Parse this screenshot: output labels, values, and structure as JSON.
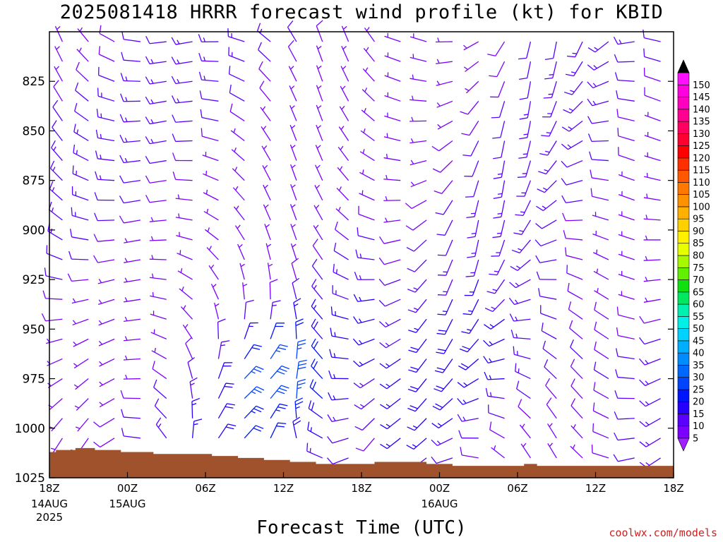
{
  "title": "2025081418 HRRR forecast wind profile (kt) for KBID",
  "credit": "coolwx.com/models",
  "chart_data": {
    "type": "wind_barb_time_height",
    "title": "2025081418 HRRR forecast wind profile (kt) for KBID",
    "xlabel": "Forecast Time (UTC)",
    "ylabel": "",
    "y_range_mb": [
      1025,
      800
    ],
    "x_range_hours": [
      0,
      48
    ],
    "y_ticks": [
      825,
      850,
      875,
      900,
      925,
      950,
      975,
      1000,
      1025
    ],
    "x_ticks": [
      {
        "hour": 0,
        "label": "18Z",
        "sub": "14AUG",
        "sub2": "2025"
      },
      {
        "hour": 6,
        "label": "00Z",
        "sub": "15AUG",
        "sub2": ""
      },
      {
        "hour": 12,
        "label": "06Z",
        "sub": "",
        "sub2": ""
      },
      {
        "hour": 18,
        "label": "12Z",
        "sub": "",
        "sub2": ""
      },
      {
        "hour": 24,
        "label": "18Z",
        "sub": "",
        "sub2": ""
      },
      {
        "hour": 30,
        "label": "00Z",
        "sub": "16AUG",
        "sub2": ""
      },
      {
        "hour": 36,
        "label": "06Z",
        "sub": "",
        "sub2": ""
      },
      {
        "hour": 42,
        "label": "12Z",
        "sub": "",
        "sub2": ""
      },
      {
        "hour": 48,
        "label": "18Z",
        "sub": "",
        "sub2": ""
      }
    ],
    "barb_hours": [
      1,
      3,
      5,
      7,
      9,
      11,
      13,
      15,
      17,
      19,
      21,
      23,
      25,
      27,
      29,
      31,
      33,
      35,
      37,
      39,
      41,
      43,
      45,
      47
    ],
    "barb_levels_mb": [
      805,
      815,
      825,
      835,
      845,
      855,
      865,
      875,
      885,
      895,
      905,
      915,
      925,
      935,
      945,
      955,
      965,
      975,
      985,
      995,
      1005,
      1015
    ],
    "surface_pressure": [
      {
        "hour": 0,
        "mb": 1012
      },
      {
        "hour": 0.5,
        "mb": 1011
      },
      {
        "hour": 2,
        "mb": 1010
      },
      {
        "hour": 3.5,
        "mb": 1011
      },
      {
        "hour": 5.5,
        "mb": 1012
      },
      {
        "hour": 8,
        "mb": 1013
      },
      {
        "hour": 10,
        "mb": 1013
      },
      {
        "hour": 12.5,
        "mb": 1014
      },
      {
        "hour": 14.5,
        "mb": 1015
      },
      {
        "hour": 16.5,
        "mb": 1016
      },
      {
        "hour": 18.5,
        "mb": 1017
      },
      {
        "hour": 20.5,
        "mb": 1018
      },
      {
        "hour": 23,
        "mb": 1018
      },
      {
        "hour": 25,
        "mb": 1017
      },
      {
        "hour": 27,
        "mb": 1017
      },
      {
        "hour": 29,
        "mb": 1018
      },
      {
        "hour": 31,
        "mb": 1019
      },
      {
        "hour": 35.5,
        "mb": 1019
      },
      {
        "hour": 36.5,
        "mb": 1018
      },
      {
        "hour": 37.5,
        "mb": 1019
      },
      {
        "hour": 46.5,
        "mb": 1019
      },
      {
        "hour": 48,
        "mb": 1018
      }
    ],
    "colorbar": {
      "levels": [
        5,
        10,
        15,
        20,
        25,
        30,
        35,
        40,
        45,
        50,
        55,
        60,
        65,
        70,
        75,
        80,
        85,
        90,
        95,
        100,
        105,
        110,
        115,
        120,
        125,
        130,
        135,
        140,
        145,
        150
      ],
      "colors": [
        "#7b00ff",
        "#5a00ff",
        "#2600ff",
        "#0015ff",
        "#0044ff",
        "#0068ff",
        "#008cff",
        "#00aeff",
        "#00d2ff",
        "#00f0e8",
        "#00f0b0",
        "#00e860",
        "#10e010",
        "#60f000",
        "#a8f800",
        "#e8ff00",
        "#fff000",
        "#ffd000",
        "#ffb000",
        "#ff9000",
        "#ff7800",
        "#ff5800",
        "#ff3000",
        "#ff0000",
        "#ff0030",
        "#ff0060",
        "#ff0090",
        "#ff00c0",
        "#ff00e0",
        "#ff10ff"
      ],
      "top_arrow_color": "#000000",
      "bottom_arrow_color": "#a020ff"
    },
    "terrain_color": "#a0522d"
  }
}
